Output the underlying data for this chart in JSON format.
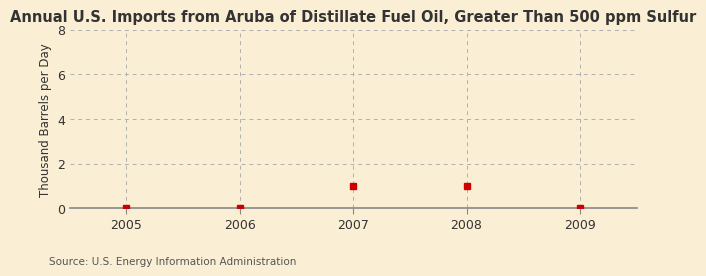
{
  "title": "Annual U.S. Imports from Aruba of Distillate Fuel Oil, Greater Than 500 ppm Sulfur",
  "ylabel": "Thousand Barrels per Day",
  "source": "Source: U.S. Energy Information Administration",
  "background_color": "#faefd4",
  "plot_bg_color": "#faefd4",
  "x_values": [
    2005,
    2006,
    2007,
    2008,
    2009
  ],
  "y_values": [
    0,
    0,
    1,
    1,
    0
  ],
  "xlim": [
    2004.5,
    2009.5
  ],
  "ylim": [
    0,
    8
  ],
  "yticks": [
    0,
    2,
    4,
    6,
    8
  ],
  "xticks": [
    2005,
    2006,
    2007,
    2008,
    2009
  ],
  "marker_color": "#cc0000",
  "marker_size": 4,
  "grid_color": "#b0b0b0",
  "title_fontsize": 10.5,
  "label_fontsize": 8.5,
  "tick_fontsize": 9,
  "source_fontsize": 7.5,
  "spine_color": "#888888"
}
